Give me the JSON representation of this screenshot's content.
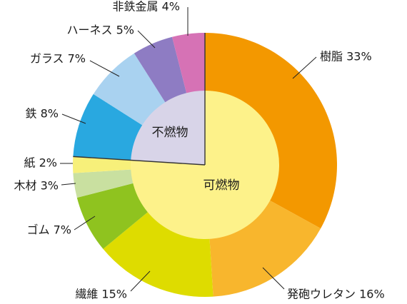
{
  "chart_data": {
    "type": "pie",
    "variant": "donut-with-inner-groups",
    "inner_groups": [
      {
        "label": "可燃物",
        "color": "#fdf28a"
      },
      {
        "label": "不燃物",
        "color": "#d8d4e8"
      }
    ],
    "slices": [
      {
        "label": "樹脂 33%",
        "value": 33,
        "group": 0,
        "color": "#f39800"
      },
      {
        "label": "発砲ウレタン 16%",
        "value": 16,
        "group": 0,
        "color": "#f8b62d"
      },
      {
        "label": "繊維 15%",
        "value": 15,
        "group": 0,
        "color": "#dedc00"
      },
      {
        "label": "ゴム 7%",
        "value": 7,
        "group": 0,
        "color": "#8fc31f"
      },
      {
        "label": "木材 3%",
        "value": 3,
        "group": 0,
        "color": "#c9e0a0"
      },
      {
        "label": "紙 2%",
        "value": 2,
        "group": 0,
        "color": "#f7f07a"
      },
      {
        "label": "鉄 8%",
        "value": 8,
        "group": 1,
        "color": "#29a8e0"
      },
      {
        "label": "ガラス 7%",
        "value": 7,
        "group": 1,
        "color": "#a9d2f0"
      },
      {
        "label": "ハーネス 5%",
        "value": 5,
        "group": 1,
        "color": "#8e7cc3"
      },
      {
        "label": "非鉄金属 4%",
        "value": 4,
        "group": 1,
        "color": "#d672b5"
      }
    ]
  }
}
